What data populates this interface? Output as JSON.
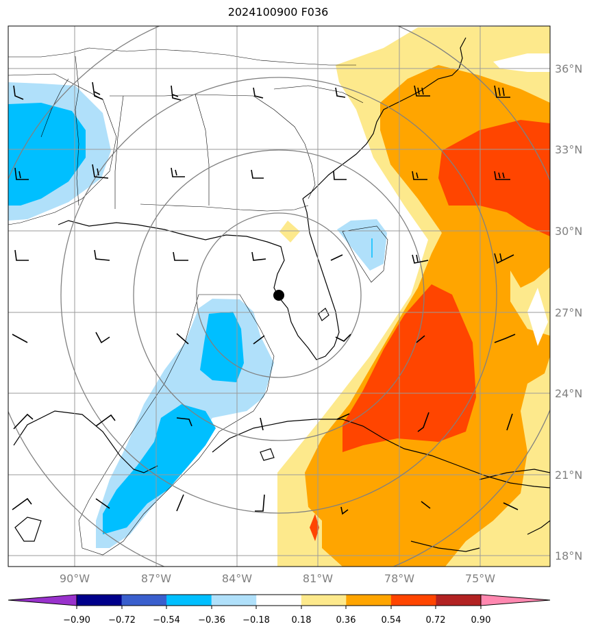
{
  "title": "2024100900 F036",
  "map": {
    "lat_labels": [
      "36°N",
      "33°N",
      "30°N",
      "27°N",
      "24°N",
      "21°N",
      "18°N"
    ],
    "lon_labels": [
      "90°W",
      "87°W",
      "84°W",
      "81°W",
      "78°W",
      "75°W"
    ],
    "storm_marker": "filled-circle",
    "range_rings": 4,
    "fill_colors": {
      "neg_0_36_to_0_18": "#b0e0fa",
      "neg_0_54_to_0_36": "#00bfff",
      "pos_0_18_to_0_36": "#fde98c",
      "pos_0_36_to_0_54": "#ffa500",
      "pos_0_54_to_0_72": "#ff4500"
    }
  },
  "colorbar": {
    "labels": [
      "−0.90",
      "−0.72",
      "−0.54",
      "−0.36",
      "−0.18",
      "0.18",
      "0.36",
      "0.54",
      "0.72",
      "0.90"
    ],
    "colors": [
      "#9932cc",
      "#00008b",
      "#3a5fcd",
      "#00bfff",
      "#b0e0fa",
      "#ffffff",
      "#fde98c",
      "#ffa500",
      "#ff4500",
      "#b22222",
      "#ff88b0"
    ]
  }
}
